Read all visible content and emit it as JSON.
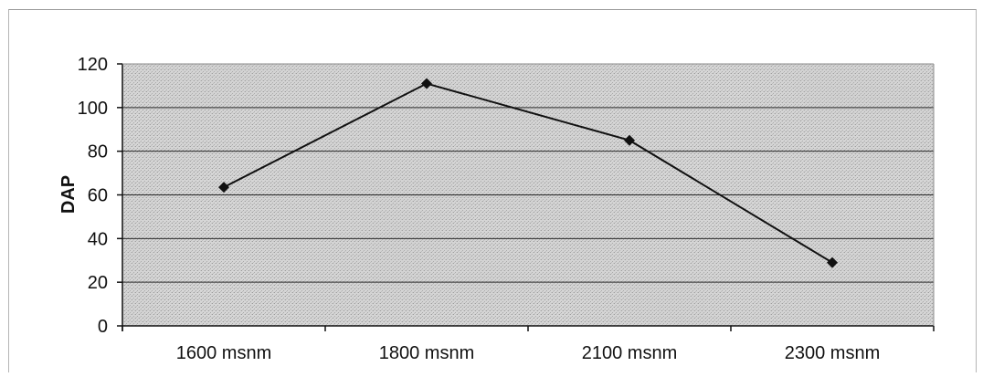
{
  "chart_data": {
    "type": "line",
    "title": "",
    "xlabel": "",
    "ylabel": "DAP",
    "categories": [
      "1600 msnm",
      "1800 msnm",
      "2100 msnm",
      "2300 msnm"
    ],
    "series": [
      {
        "values": [
          63.5,
          111,
          85,
          29
        ]
      }
    ],
    "ylim": [
      0,
      120
    ],
    "yticks": [
      "0",
      "20",
      "40",
      "60",
      "80",
      "100",
      "120"
    ],
    "grid": true,
    "legend": "none",
    "colors": {
      "line": "#111111",
      "marker": "#111111",
      "plot_background": "#d0d0d0",
      "grid": "#2a2a2a"
    }
  }
}
